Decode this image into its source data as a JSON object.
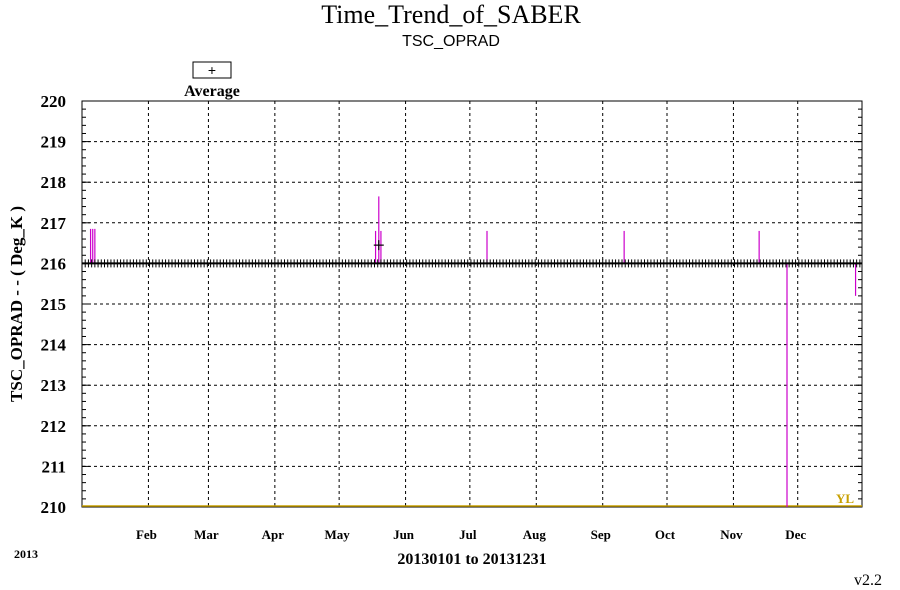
{
  "chart_data": {
    "type": "line",
    "title": "Time_Trend_of_SABER",
    "subtitle": "TSC_OPRAD",
    "ylabel": "TSC_OPRAD  - - ( Deg_K )",
    "xlabel": "20130101 to 20131231",
    "year_label": "2013",
    "version": "v2.2",
    "legend": {
      "marker": "+",
      "label": "Average",
      "placement": "top-left"
    },
    "ylim": [
      210,
      220
    ],
    "y_ticks": [
      "210",
      "211",
      "212",
      "213",
      "214",
      "215",
      "216",
      "217",
      "218",
      "219",
      "220"
    ],
    "x_range_days": [
      1,
      365
    ],
    "x_ticks": [
      {
        "label": "Feb",
        "day": 32
      },
      {
        "label": "Mar",
        "day": 60
      },
      {
        "label": "Apr",
        "day": 91
      },
      {
        "label": "May",
        "day": 121
      },
      {
        "label": "Jun",
        "day": 152
      },
      {
        "label": "Jul",
        "day": 182
      },
      {
        "label": "Aug",
        "day": 213
      },
      {
        "label": "Sep",
        "day": 244
      },
      {
        "label": "Oct",
        "day": 274
      },
      {
        "label": "Nov",
        "day": 305
      },
      {
        "label": "Dec",
        "day": 335
      }
    ],
    "grid": true,
    "series": [
      {
        "name": "Average",
        "color": "#000000",
        "marker": "+",
        "x_start": 1,
        "x_end": 365,
        "x_step": 1.5,
        "y": 216.0
      }
    ],
    "excursions": {
      "color": "#cc00cc",
      "ranges": [
        {
          "day": 5,
          "low": 216.0,
          "high": 216.85
        },
        {
          "day": 6,
          "low": 216.0,
          "high": 216.85
        },
        {
          "day": 7,
          "low": 216.0,
          "high": 216.85
        },
        {
          "day": 138,
          "low": 216.0,
          "high": 216.8
        },
        {
          "day": 139.5,
          "low": 216.0,
          "high": 217.65
        },
        {
          "day": 140.5,
          "low": 216.0,
          "high": 216.8
        },
        {
          "day": 190,
          "low": 216.0,
          "high": 216.8
        },
        {
          "day": 254,
          "low": 216.0,
          "high": 216.8
        },
        {
          "day": 317,
          "low": 216.0,
          "high": 216.8
        },
        {
          "day": 330,
          "low": 210.0,
          "high": 216.0
        },
        {
          "day": 362,
          "low": 215.2,
          "high": 216.0
        }
      ],
      "highlight": {
        "day": 139.5,
        "y": 216.45
      }
    },
    "reference_line": {
      "label": "YL",
      "y": 210,
      "color": "#c8a000"
    }
  }
}
